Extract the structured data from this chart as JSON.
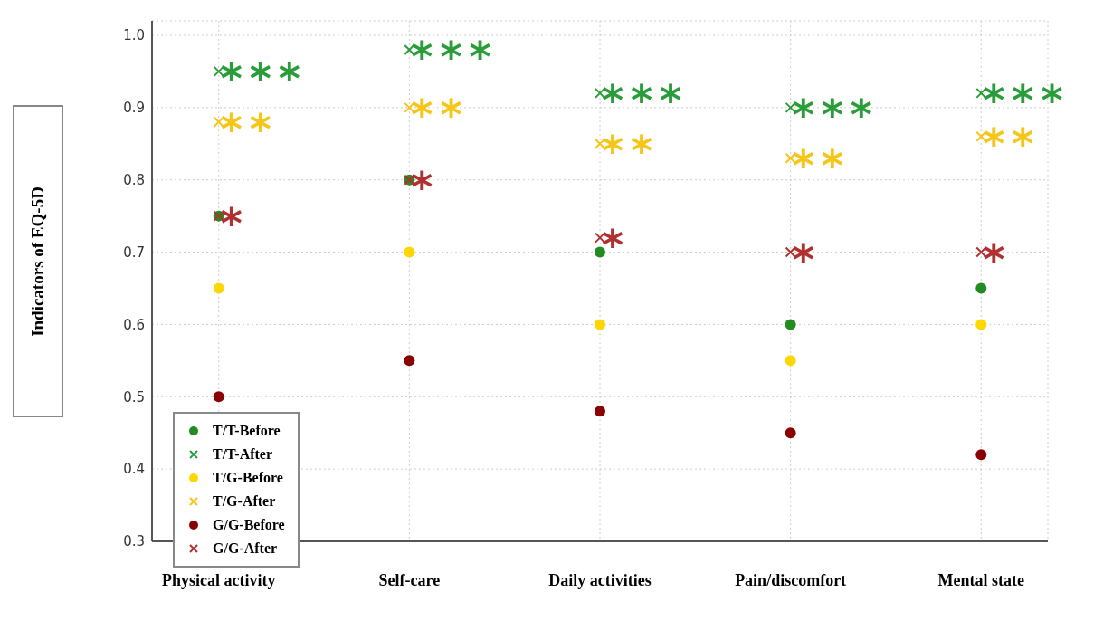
{
  "chart_data": {
    "type": "scatter",
    "ylabel": "Indicators of EQ-5D",
    "categories": [
      "Physical activity",
      "Self-care",
      "Daily activities",
      "Pain/discomfort",
      "Mental state"
    ],
    "series": [
      {
        "name": "T/T-Before",
        "color": "#228b22",
        "marker": "circle",
        "values": [
          0.75,
          0.8,
          0.7,
          0.6,
          0.65
        ]
      },
      {
        "name": "T/T-After",
        "color": "#2a9d3a",
        "marker": "cross",
        "values": [
          0.95,
          0.98,
          0.92,
          0.9,
          0.92
        ]
      },
      {
        "name": "T/G-Before",
        "color": "#ffd700",
        "marker": "circle",
        "values": [
          0.65,
          0.7,
          0.6,
          0.55,
          0.6
        ]
      },
      {
        "name": "T/G-After",
        "color": "#f5c518",
        "marker": "cross",
        "values": [
          0.88,
          0.9,
          0.85,
          0.83,
          0.86
        ]
      },
      {
        "name": "G/G-Before",
        "color": "#8b0000",
        "marker": "circle",
        "values": [
          0.5,
          0.55,
          0.48,
          0.45,
          0.42
        ]
      },
      {
        "name": "G/G-After",
        "color": "#b03030",
        "marker": "cross",
        "values": [
          0.75,
          0.8,
          0.72,
          0.7,
          0.7
        ]
      }
    ],
    "annotations": [
      "***",
      "**",
      "*",
      "***",
      "**",
      "*",
      "***",
      "**",
      "*",
      "***",
      "**",
      "*",
      "***",
      "**",
      "*"
    ],
    "ylim": [
      0.3,
      1.02
    ],
    "yticks": [
      {
        "value": 0.3,
        "label": "0.3"
      },
      {
        "value": 0.4,
        "label": "0.4"
      },
      {
        "value": 0.5,
        "label": "0.5"
      },
      {
        "value": 0.6,
        "label": "0.6"
      },
      {
        "value": 0.7,
        "label": "0.7"
      },
      {
        "value": 0.8,
        "label": "0.8"
      },
      {
        "value": 0.9,
        "label": "0.9"
      },
      {
        "value": 1.0,
        "label": "1.0"
      }
    ],
    "grid": true,
    "legend": "bottom left"
  }
}
